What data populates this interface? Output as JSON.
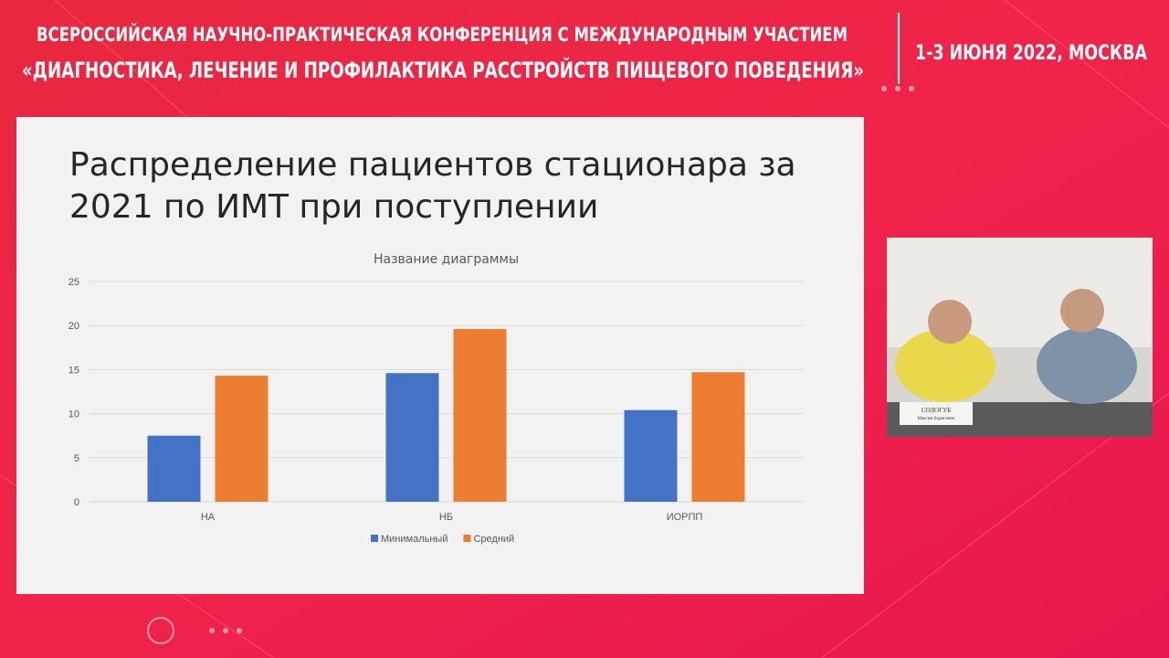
{
  "header": {
    "line1": "ВСЕРОССИЙСКАЯ НАУЧНО-ПРАКТИЧЕСКАЯ КОНФЕРЕНЦИЯ С МЕЖДУНАРОДНЫМ УЧАСТИЕМ",
    "line2": "«ДИАГНОСТИКА, ЛЕЧЕНИЕ И ПРОФИЛАКТИКА РАССТРОЙСТВ ПИЩЕВОГО ПОВЕДЕНИЯ»",
    "date": "1-3 ИЮНЯ 2022, МОСКВА"
  },
  "slide": {
    "title_lines": [
      "Распределение пациентов стационара за",
      "2021 по ИМТ при поступлении"
    ]
  },
  "video": {
    "nameplate": "СОЛОГУБ",
    "nameplate_sub": "Максим Борисович"
  },
  "chart_data": {
    "type": "bar",
    "title": "Название диаграммы",
    "categories": [
      "НА",
      "НБ",
      "ИОРПП"
    ],
    "series": [
      {
        "name": "Минимальный",
        "color": "#4472c4",
        "values": [
          7.5,
          14.6,
          10.4
        ]
      },
      {
        "name": "Средний",
        "color": "#ed7d31",
        "values": [
          14.3,
          19.6,
          14.7
        ]
      }
    ],
    "ylim": [
      0,
      25
    ],
    "yticks": [
      0,
      5,
      10,
      15,
      20,
      25
    ],
    "grid": true,
    "legend": "bottom"
  }
}
